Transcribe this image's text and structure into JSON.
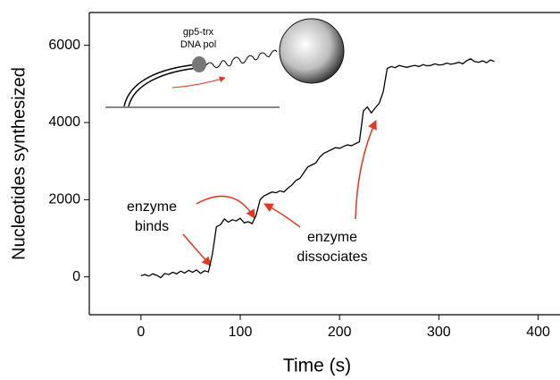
{
  "chart_data": {
    "type": "line",
    "x_label": "Time (s)",
    "y_label": "Nucleotides synthesized",
    "xlim": [
      -52,
      422
    ],
    "ylim": [
      -980,
      6850
    ],
    "xticks": [
      0,
      100,
      200,
      300,
      400
    ],
    "yticks": [
      0,
      2000,
      4000,
      6000
    ],
    "color": "#000000",
    "x": [
      0,
      4,
      8,
      12,
      16,
      20,
      24,
      28,
      32,
      36,
      40,
      44,
      48,
      52,
      56,
      60,
      64,
      68,
      72,
      76,
      80,
      84,
      88,
      92,
      96,
      100,
      104,
      108,
      112,
      116,
      120,
      124,
      128,
      132,
      136,
      140,
      144,
      148,
      152,
      156,
      160,
      164,
      168,
      172,
      176,
      180,
      184,
      188,
      192,
      196,
      200,
      204,
      208,
      212,
      216,
      220,
      224,
      228,
      232,
      236,
      240,
      244,
      248,
      252,
      256,
      260,
      264,
      268,
      272,
      276,
      280,
      284,
      288,
      292,
      296,
      300,
      304,
      308,
      312,
      316,
      320,
      324,
      328,
      332,
      336,
      340,
      344,
      348,
      352,
      356
    ],
    "values": [
      30,
      60,
      20,
      80,
      40,
      -20,
      90,
      60,
      120,
      80,
      150,
      100,
      170,
      120,
      180,
      90,
      160,
      130,
      600,
      1300,
      1350,
      1500,
      1420,
      1480,
      1450,
      1520,
      1400,
      1430,
      1380,
      1600,
      2000,
      2100,
      2150,
      2200,
      2180,
      2230,
      2200,
      2300,
      2380,
      2500,
      2550,
      2700,
      2850,
      2900,
      2950,
      3100,
      3200,
      3250,
      3300,
      3350,
      3330,
      3380,
      3420,
      3400,
      3450,
      3500,
      4300,
      4400,
      4250,
      4380,
      4500,
      4800,
      5400,
      5450,
      5420,
      5480,
      5450,
      5430,
      5460,
      5480,
      5450,
      5500,
      5470,
      5480,
      5520,
      5490,
      5500,
      5540,
      5510,
      5530,
      5560,
      5520,
      5600,
      5650,
      5580,
      5560,
      5600,
      5550,
      5620,
      5580
    ],
    "annotations": [
      {
        "lines": [
          "enzyme",
          "binds"
        ],
        "color": "#e8361e"
      },
      {
        "lines": [
          "enzyme",
          "dissociates"
        ],
        "color": "#e8361e"
      }
    ],
    "inset_label": [
      "gp5-trx",
      "DNA pol"
    ]
  }
}
